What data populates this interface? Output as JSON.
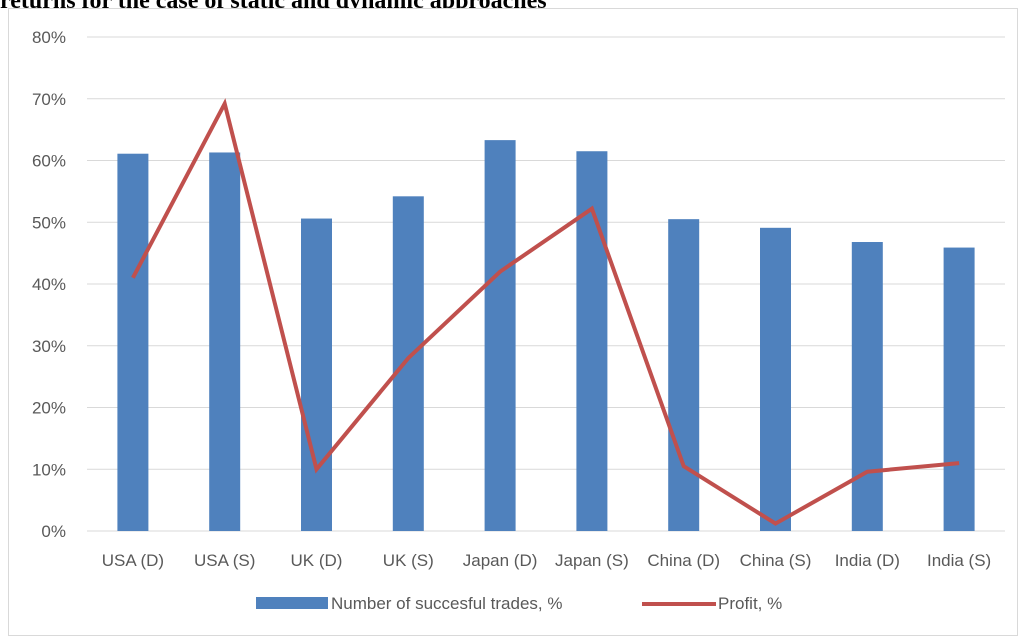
{
  "title": "returns for the case of static and dynamic approaches",
  "chart_data": {
    "type": "bar",
    "title": "",
    "xlabel": "",
    "ylabel": "",
    "ylim": [
      0,
      0.8
    ],
    "y_ticks": [
      "0%",
      "10%",
      "20%",
      "30%",
      "40%",
      "50%",
      "60%",
      "70%",
      "80%"
    ],
    "categories": [
      "USA (D)",
      "USA (S)",
      "UK (D)",
      "UK (S)",
      "Japan (D)",
      "Japan (S)",
      "China (D)",
      "China (S)",
      "India (D)",
      "India (S)"
    ],
    "series": [
      {
        "name": "Number of succesful trades, %",
        "type": "bar",
        "color": "#4f81bd",
        "values": [
          0.611,
          0.613,
          0.506,
          0.542,
          0.633,
          0.615,
          0.505,
          0.491,
          0.468,
          0.459
        ]
      },
      {
        "name": "Profit, %",
        "type": "line",
        "color": "#c0504d",
        "values": [
          0.41,
          0.692,
          0.1,
          0.28,
          0.42,
          0.522,
          0.105,
          0.012,
          0.096,
          0.11
        ]
      }
    ],
    "grid": true,
    "legend": "bottom-center"
  }
}
